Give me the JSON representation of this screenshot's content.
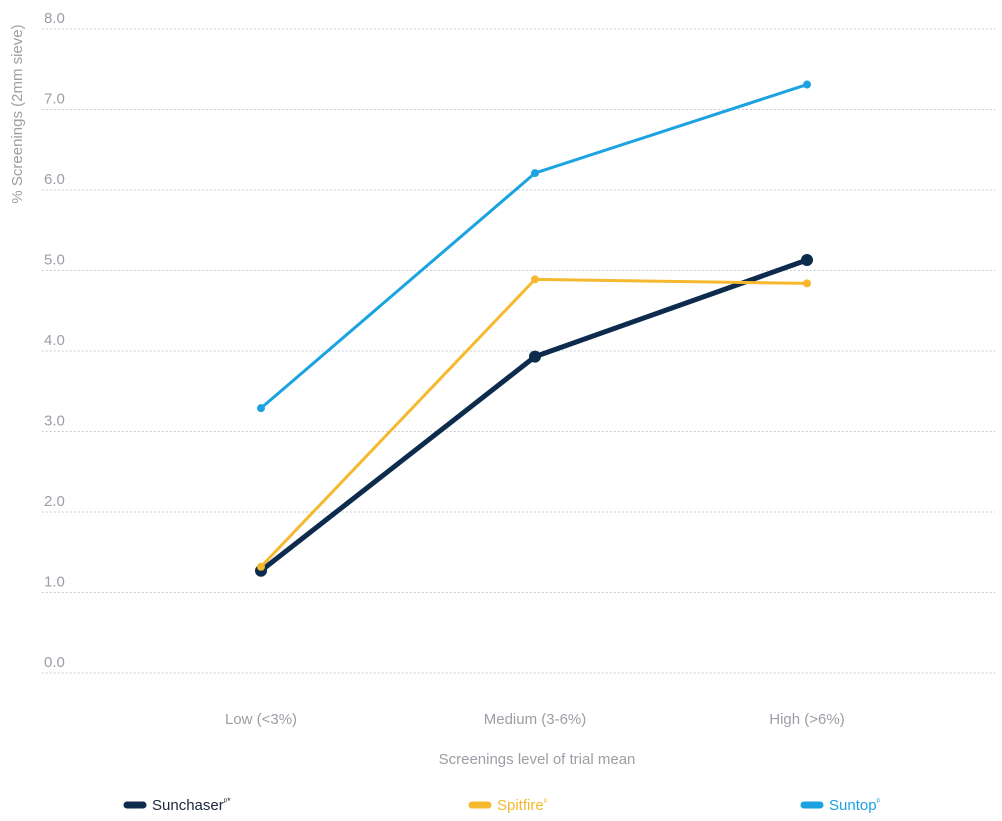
{
  "chart_data": {
    "type": "line",
    "title": "",
    "xlabel": "Screenings level of trial mean",
    "ylabel": "% Screenings (2mm sieve)",
    "categories": [
      "Low (<3%)",
      "Medium (3-6%)",
      "High (>6%)"
    ],
    "ylim": [
      0,
      8
    ],
    "yticks": [
      "0.0",
      "1.0",
      "2.0",
      "3.0",
      "4.0",
      "5.0",
      "6.0",
      "7.0",
      "8.0"
    ],
    "grid": "horizontal-dotted",
    "legend_position": "bottom",
    "series": [
      {
        "name": "Sunchaser",
        "mark": "ᵖ*",
        "color": "#0d2b4c",
        "values": [
          1.27,
          3.93,
          5.13
        ]
      },
      {
        "name": "Spitfire",
        "mark": "ᵖ",
        "color": "#f5b82e",
        "values": [
          1.32,
          4.89,
          4.84
        ]
      },
      {
        "name": "Suntop",
        "mark": "ᵖ",
        "color": "#1aa3e0",
        "values": [
          3.29,
          6.21,
          7.31
        ]
      }
    ]
  }
}
